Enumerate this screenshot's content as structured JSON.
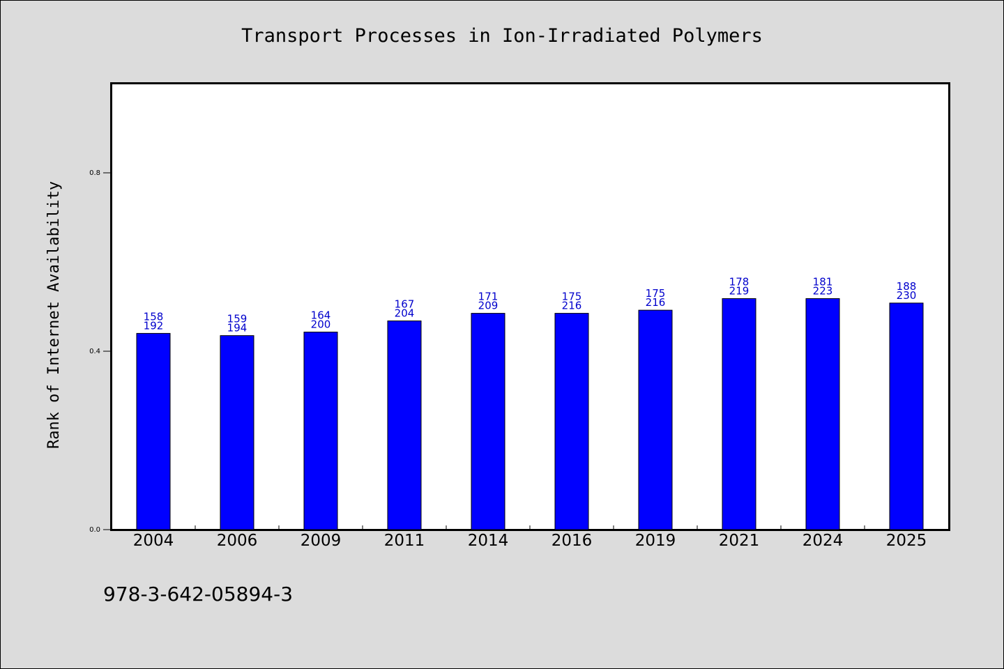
{
  "chart_data": {
    "type": "bar",
    "title": "Transport Processes in Ion-Irradiated Polymers",
    "xlabel": "",
    "ylabel": "Rank of Internet Availability",
    "ylim": [
      0,
      1.0
    ],
    "yticks": [
      "0.0",
      "0.4",
      "0.8"
    ],
    "grid": false,
    "categories": [
      "2004",
      "2006",
      "2009",
      "2011",
      "2014",
      "2016",
      "2019",
      "2021",
      "2024",
      "2025"
    ],
    "values": [
      0.44,
      0.435,
      0.443,
      0.468,
      0.485,
      0.485,
      0.492,
      0.518,
      0.518,
      0.508
    ],
    "annotations_top": [
      "158",
      "159",
      "164",
      "167",
      "171",
      "175",
      "175",
      "178",
      "181",
      "188"
    ],
    "annotations_bottom": [
      "192",
      "194",
      "200",
      "204",
      "209",
      "216",
      "216",
      "219",
      "223",
      "230"
    ],
    "bar_color": "#0000ff",
    "label_color": "#0000cc"
  },
  "footer": {
    "isbn": "978-3-642-05894-3"
  }
}
